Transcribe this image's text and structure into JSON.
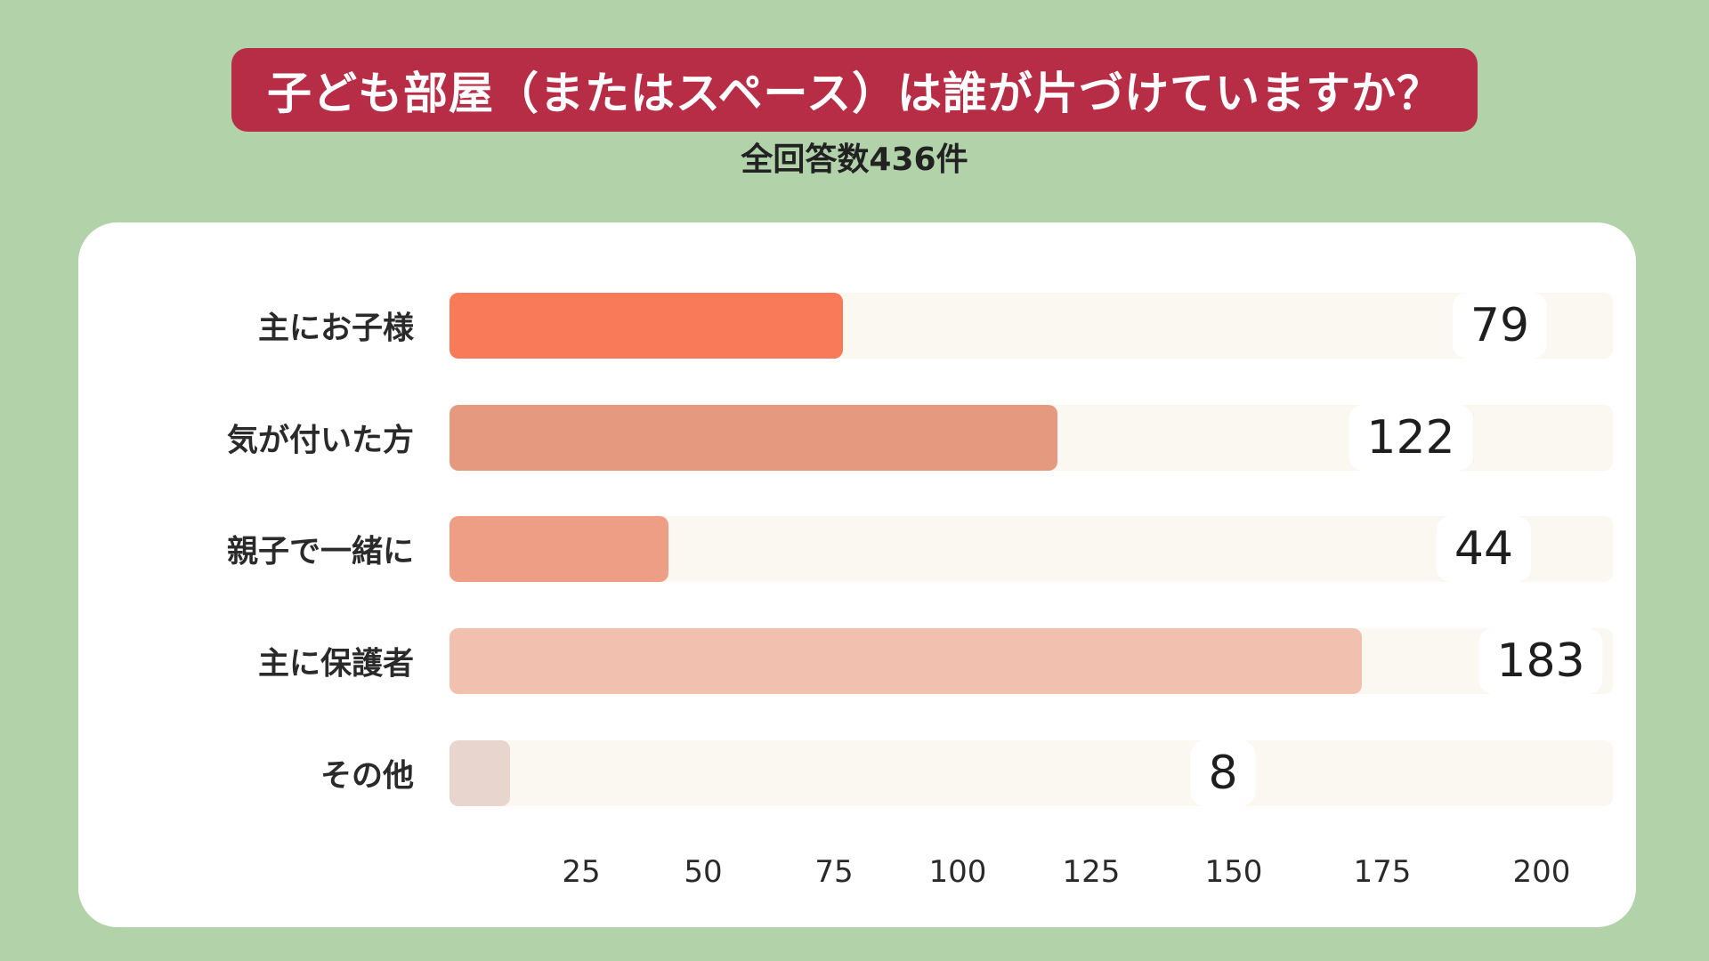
{
  "title": "子ども部屋（またはスペース）は誰が片づけていますか？",
  "subtitle": "全回答数436件",
  "colors": {
    "background": "#b2d3aa",
    "title_banner": "#b82d46",
    "track": "#fbf7f1"
  },
  "chart_data": {
    "type": "bar",
    "orientation": "horizontal",
    "categories": [
      "主にお子様",
      "気が付いた方",
      "親子で一緒に",
      "主に保護者",
      "その他"
    ],
    "values": [
      79,
      122,
      44,
      183,
      8
    ],
    "bar_colors": [
      "#f97a58",
      "#e59a80",
      "#ee9e84",
      "#f1c0ae",
      "#e8d5cd"
    ],
    "x_ticks": [
      "25",
      "50",
      "75",
      "100",
      "125",
      "150",
      "175",
      "200"
    ],
    "xlim": [
      0,
      200
    ],
    "grid": false,
    "legend": "none"
  }
}
